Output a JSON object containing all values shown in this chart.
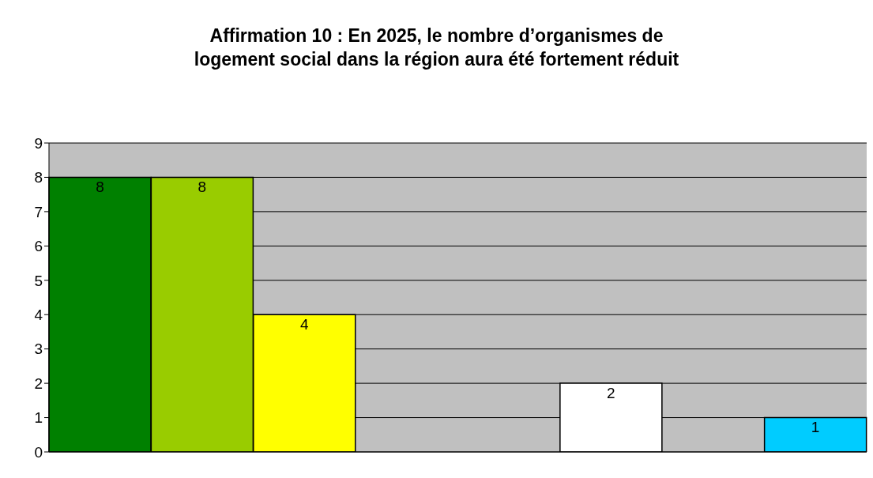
{
  "chart_data": {
    "type": "bar",
    "title": "Affirmation 10 : En 2025, le nombre d’organismes de\nlogement social dans la région aura été fortement réduit",
    "categories": [
      null,
      null,
      null,
      null,
      null,
      null,
      null,
      null
    ],
    "values": [
      8,
      8,
      4,
      null,
      null,
      2,
      null,
      1
    ],
    "colors": [
      "#008000",
      "#99cc00",
      "#ffff00",
      "#ffffff",
      "#ffffff",
      "#ffffff",
      "#ffffff",
      "#00ccff"
    ],
    "ylim": [
      0,
      9
    ],
    "yticks": [
      0,
      1,
      2,
      3,
      4,
      5,
      6,
      7,
      8,
      9
    ],
    "grid": "y",
    "data_labels": true,
    "tick_labels": "y",
    "legend": false
  }
}
